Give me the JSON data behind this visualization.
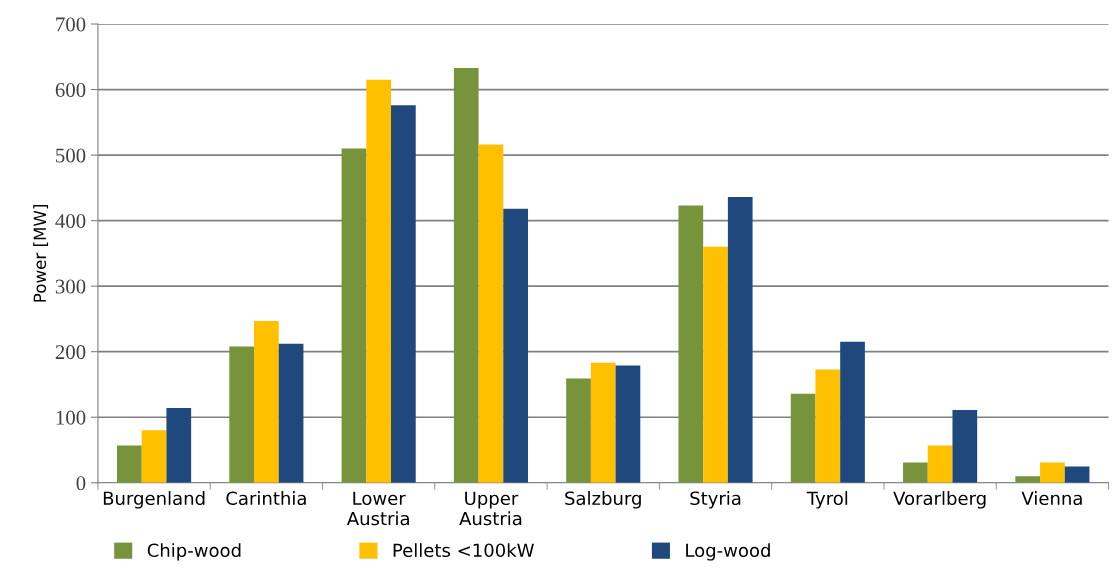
{
  "chart_data": {
    "type": "bar",
    "ylabel": "Power [MW]",
    "categories": [
      "Burgenland",
      "Carinthia",
      "Lower\nAustria",
      "Upper\nAustria",
      "Salzburg",
      "Styria",
      "Tyrol",
      "Vorarlberg",
      "Vienna"
    ],
    "series": [
      {
        "name": "Chip-wood",
        "color": "#77933c",
        "values": [
          57,
          208,
          510,
          633,
          159,
          423,
          136,
          31,
          10
        ]
      },
      {
        "name": "Pellets <100kW",
        "color": "#ffc000",
        "values": [
          80,
          247,
          615,
          516,
          183,
          360,
          173,
          57,
          31
        ]
      },
      {
        "name": "Log-wood",
        "color": "#1f497d",
        "values": [
          114,
          212,
          576,
          418,
          179,
          436,
          215,
          111,
          25
        ]
      }
    ],
    "ylim": [
      0,
      700
    ],
    "yticks": [
      0,
      100,
      200,
      300,
      400,
      500,
      600,
      700
    ],
    "grid": "y",
    "legend": "bottom left"
  }
}
